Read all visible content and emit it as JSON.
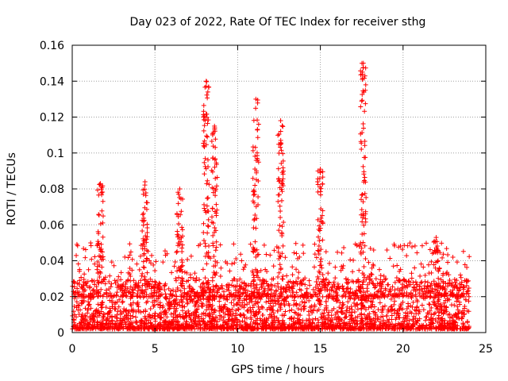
{
  "chart_data": {
    "type": "scatter",
    "title": "Day 023 of 2022, Rate Of TEC Index for receiver sthg",
    "xlabel": "GPS time / hours",
    "ylabel": "ROTI / TECUs",
    "xlim": [
      0,
      25
    ],
    "ylim": [
      0,
      0.16
    ],
    "x_ticks": [
      0,
      5,
      10,
      15,
      20,
      25
    ],
    "y_ticks": [
      0,
      0.02,
      0.04,
      0.06,
      0.08,
      0.1,
      0.12,
      0.14,
      0.16
    ],
    "x_tick_labels": [
      "0",
      "5",
      "10",
      "15",
      "20",
      "25"
    ],
    "y_tick_labels": [
      "0",
      "0.02",
      "0.04",
      "0.06",
      "0.08",
      "0.1",
      "0.12",
      "0.14",
      "0.16"
    ],
    "grid": true,
    "marker": "+",
    "color": "#ff0000",
    "time_range_hours": [
      0,
      24
    ],
    "baseline_range": [
      0.002,
      0.03
    ],
    "peaks": [
      {
        "x": 1.7,
        "y": 0.083
      },
      {
        "x": 4.4,
        "y": 0.084
      },
      {
        "x": 6.5,
        "y": 0.08
      },
      {
        "x": 8.1,
        "y": 0.14
      },
      {
        "x": 8.6,
        "y": 0.115
      },
      {
        "x": 11.1,
        "y": 0.13
      },
      {
        "x": 12.6,
        "y": 0.118
      },
      {
        "x": 15.0,
        "y": 0.091
      },
      {
        "x": 17.6,
        "y": 0.15
      },
      {
        "x": 22.0,
        "y": 0.053
      }
    ]
  }
}
